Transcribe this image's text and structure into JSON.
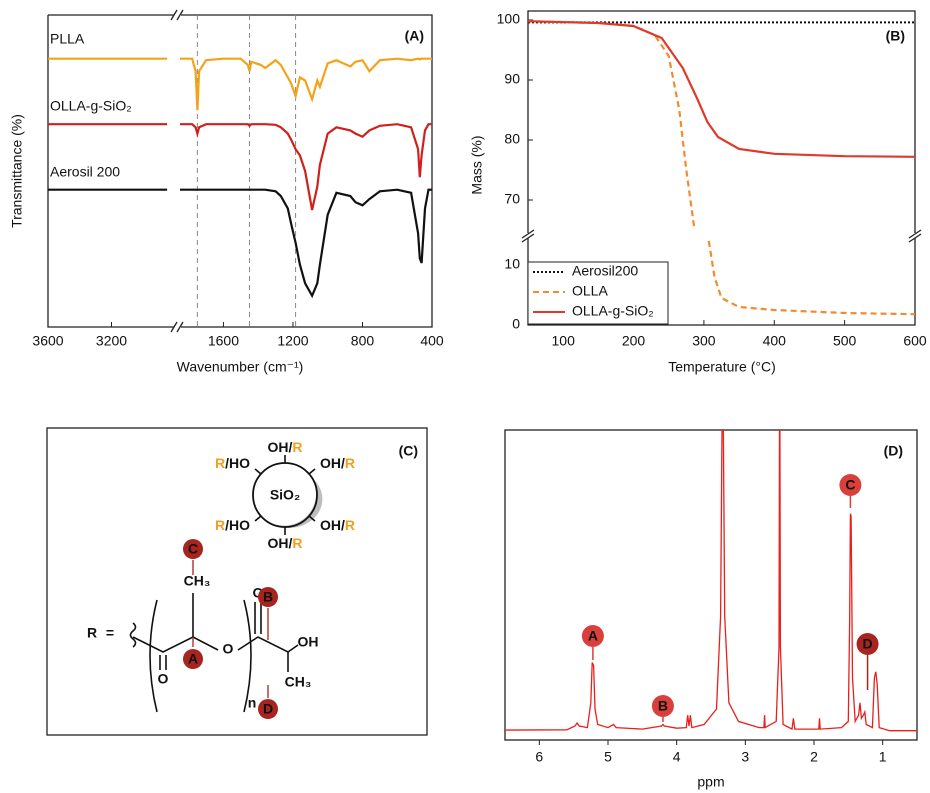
{
  "chart_data": [
    {
      "type": "line",
      "panel_label": "(A)",
      "xlabel": "Wavenumber (cm⁻¹)",
      "ylabel": "Transmittance (%)",
      "xlim": [
        3600,
        400
      ],
      "xbreak": [
        2800,
        1850
      ],
      "ylim": [
        0,
        100
      ],
      "xticks": [
        3600,
        3200,
        1600,
        1200,
        800,
        400
      ],
      "vlines": [
        1750,
        1450,
        1185
      ],
      "x": [
        3600,
        3200,
        2850,
        2400,
        1850,
        1780,
        1760,
        1750,
        1740,
        1700,
        1600,
        1500,
        1460,
        1450,
        1440,
        1385,
        1360,
        1300,
        1270,
        1230,
        1210,
        1185,
        1160,
        1130,
        1090,
        1060,
        1045,
        1000,
        950,
        870,
        840,
        800,
        760,
        700,
        600,
        520,
        480,
        470,
        460,
        440,
        420,
        400
      ],
      "series": [
        {
          "name": "PLLA",
          "color": "#f5a21b",
          "values": [
            86,
            86,
            86,
            null,
            86,
            86,
            82,
            69.5,
            82,
            85.5,
            86,
            86,
            84,
            82,
            85,
            84,
            83,
            85.5,
            84,
            80,
            78,
            74,
            80,
            79,
            73,
            79,
            77,
            84.5,
            85.5,
            83.5,
            85,
            85.5,
            82,
            85.5,
            86,
            85.5,
            86,
            85.8,
            86,
            86,
            86,
            86
          ]
        },
        {
          "name": "OLLA-g-SiO₂",
          "color": "#d0201b",
          "values": [
            65,
            65,
            65,
            null,
            65,
            65,
            64,
            62,
            64,
            65,
            65,
            65,
            65,
            64.5,
            65,
            65,
            65,
            64.8,
            64,
            62,
            60,
            57,
            55,
            50,
            37.5,
            45,
            52,
            62,
            64,
            63,
            62,
            61,
            63,
            64.5,
            65,
            64,
            57,
            48,
            55,
            63,
            65,
            65
          ]
        },
        {
          "name": "Aerosil 200",
          "color": "#111111",
          "values": [
            44,
            44,
            44,
            null,
            44,
            44,
            44,
            44,
            44,
            44,
            44,
            44,
            44,
            44,
            44,
            44,
            44,
            43.5,
            42,
            38,
            33,
            27,
            20,
            14,
            10,
            14,
            20,
            36,
            43,
            42,
            40,
            39,
            41,
            43.5,
            44,
            43,
            30,
            22,
            20.5,
            38,
            44,
            44
          ]
        }
      ]
    },
    {
      "type": "line",
      "panel_label": "(B)",
      "xlabel": "Temperature (°C)",
      "ylabel": "Mass (%)",
      "xlim": [
        50,
        600
      ],
      "ylim": [
        0,
        101.5
      ],
      "ybreak": [
        14.5,
        64.5
      ],
      "xticks": [
        100,
        200,
        300,
        400,
        500,
        600
      ],
      "yticks": [
        0,
        10,
        70,
        80,
        90,
        100
      ],
      "legend": "lower left",
      "series": [
        {
          "name": "Aerosil200",
          "color": "#111111",
          "style": "dotted",
          "x": [
            50,
            600
          ],
          "values": [
            99.6,
            99.6
          ]
        },
        {
          "name": "OLLA",
          "color": "#f28b30",
          "style": "dashed",
          "x": [
            50,
            150,
            200,
            230,
            250,
            265,
            275,
            286,
            297,
            307,
            315,
            325,
            350,
            400,
            500,
            600
          ],
          "values": [
            99.8,
            99.5,
            99,
            97.5,
            94,
            85,
            75,
            65.5,
            null,
            14,
            8,
            4.5,
            3,
            2.5,
            2,
            1.8
          ]
        },
        {
          "name": "OLLA-g-SiO₂",
          "color": "#e0392a",
          "style": "solid",
          "x": [
            50,
            150,
            200,
            240,
            270,
            290,
            305,
            320,
            350,
            400,
            500,
            600
          ],
          "values": [
            99.8,
            99.5,
            99,
            97,
            92,
            87,
            83,
            80.5,
            78.5,
            77.7,
            77.3,
            77.2
          ]
        }
      ]
    },
    {
      "type": "line",
      "panel_label": "(D)",
      "xlabel": "ppm",
      "xlim": [
        6.5,
        0.5
      ],
      "ylim": [
        0,
        100
      ],
      "xticks": [
        6,
        5,
        4,
        3,
        2,
        1
      ],
      "series": [
        {
          "color": "#e8201c",
          "x": [
            6.5,
            5.6,
            5.48,
            5.45,
            5.42,
            5.3,
            5.25,
            5.23,
            5.21,
            5.19,
            5.15,
            5.0,
            4.92,
            4.88,
            4.5,
            4.22,
            4.2,
            4.18,
            4.0,
            3.86,
            3.84,
            3.82,
            3.8,
            3.78,
            3.6,
            3.42,
            3.36,
            3.33,
            3.3,
            3.24,
            3.1,
            2.8,
            2.73,
            2.72,
            2.71,
            2.55,
            2.51,
            2.5,
            2.49,
            2.45,
            2.32,
            2.3,
            2.28,
            2.0,
            1.93,
            1.92,
            1.91,
            1.6,
            1.5,
            1.48,
            1.47,
            1.46,
            1.44,
            1.4,
            1.35,
            1.33,
            1.31,
            1.28,
            1.26,
            1.24,
            1.15,
            1.12,
            1.1,
            1.08,
            1.05,
            0.9,
            0.5
          ],
          "values": [
            3.2,
            3.3,
            4.5,
            5.5,
            4.5,
            4,
            12,
            25,
            24,
            10,
            5,
            4,
            5,
            4,
            3.5,
            4.5,
            5,
            4.5,
            3.8,
            4,
            8,
            4.5,
            8,
            4,
            5,
            10,
            40,
            130,
            40,
            12,
            6,
            4,
            4,
            8,
            4,
            6,
            30,
            130,
            30,
            5,
            3.5,
            7,
            3.5,
            3.5,
            3.5,
            7,
            3.5,
            4,
            6,
            40,
            73,
            72,
            20,
            6,
            8,
            12,
            7,
            8,
            9,
            5,
            4,
            20,
            22,
            18,
            4,
            3,
            3
          ]
        }
      ],
      "annotations": [
        {
          "text": "A",
          "x": 5.22,
          "color": "#d9403c"
        },
        {
          "text": "B",
          "x": 4.2,
          "color": "#d9403c"
        },
        {
          "text": "C",
          "x": 1.47,
          "color": "#d9403c"
        },
        {
          "text": "D",
          "x": 1.22,
          "color": "#a8241f"
        }
      ]
    }
  ],
  "diagram": {
    "panel_label": "(C)",
    "core": "SiO₂",
    "substituents": [
      [
        "OH/",
        "R"
      ],
      [
        "OH/",
        "R"
      ],
      [
        "OH/",
        "R"
      ],
      [
        "OH/",
        "R"
      ],
      [
        "R",
        "/HO"
      ],
      [
        "R",
        "/HO"
      ]
    ],
    "structure": {
      "r": "R",
      "equals": "=",
      "ch3_top": "CH₃",
      "o_ester": "O",
      "o_carbonyl_1": "O",
      "o_carbonyl_2": "O",
      "oh": "OH",
      "n": "n",
      "ch3_bottom": "CH₃"
    },
    "markers": [
      "A",
      "B",
      "C",
      "D"
    ]
  }
}
